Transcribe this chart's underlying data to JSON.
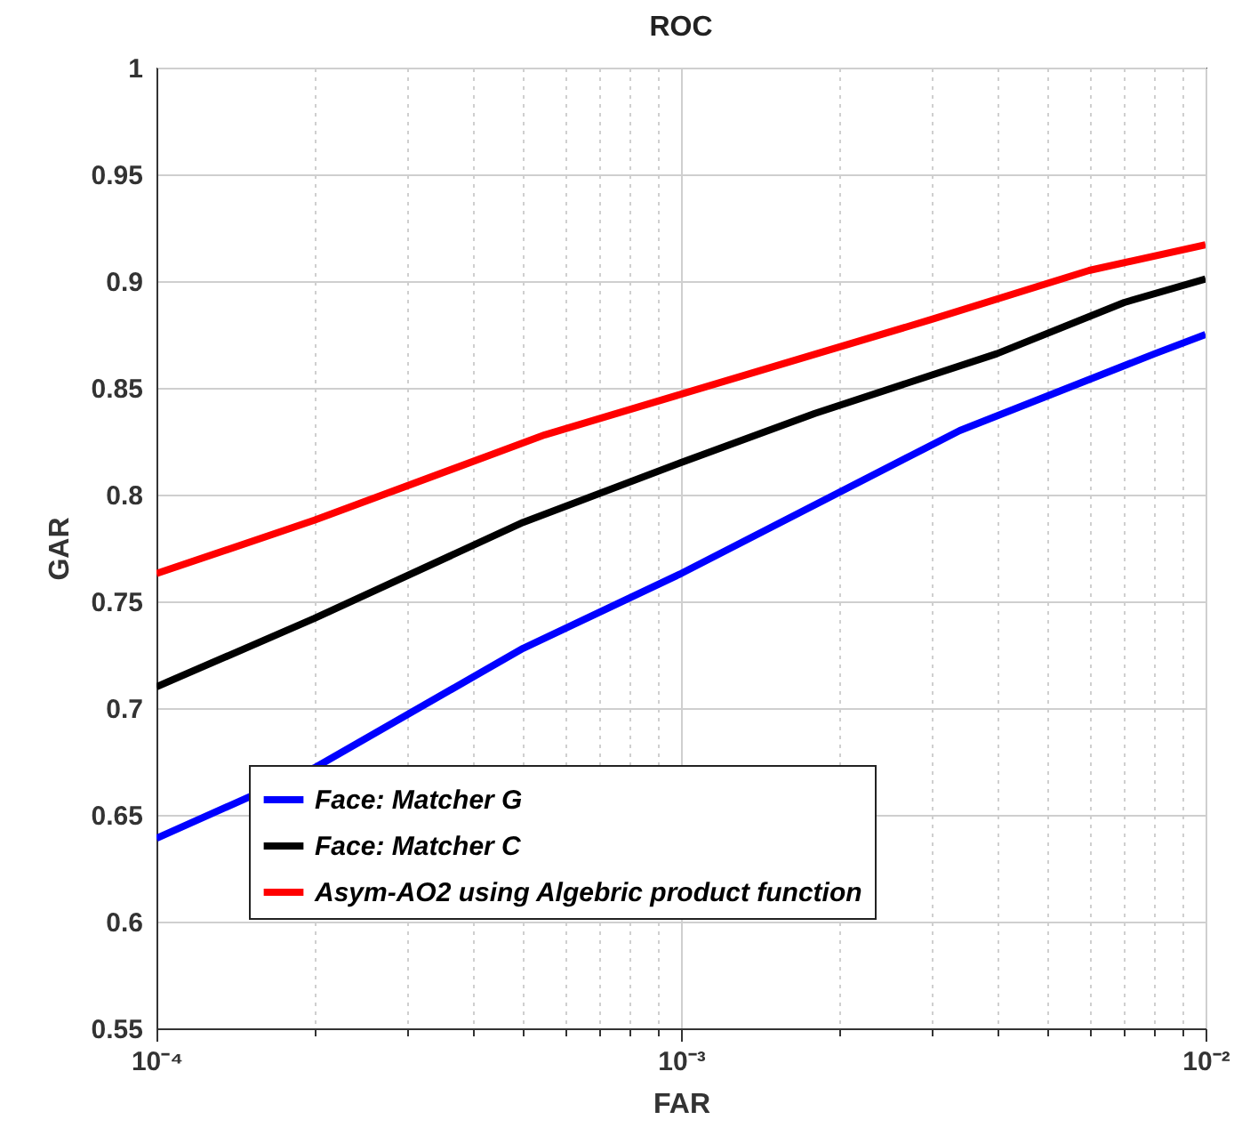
{
  "chart_data": {
    "type": "line",
    "title": "ROC",
    "xlabel": "FAR",
    "ylabel": "GAR",
    "log": "x",
    "grid": true,
    "legend": "bottom left",
    "line_style": "solid",
    "xlim": [
      0.0001,
      0.01
    ],
    "xticks": [
      {
        "value": 0.0001,
        "label": "10⁻⁴"
      },
      {
        "value": 0.0002,
        "label": null
      },
      {
        "value": 0.0003,
        "label": null
      },
      {
        "value": 0.0004,
        "label": null
      },
      {
        "value": 0.0005,
        "label": null
      },
      {
        "value": 0.0006,
        "label": null
      },
      {
        "value": 0.0007,
        "label": null
      },
      {
        "value": 0.0008,
        "label": null
      },
      {
        "value": 0.0009,
        "label": null
      },
      {
        "value": 0.001,
        "label": "10⁻³"
      },
      {
        "value": 0.002,
        "label": null
      },
      {
        "value": 0.003,
        "label": null
      },
      {
        "value": 0.004,
        "label": null
      },
      {
        "value": 0.005,
        "label": null
      },
      {
        "value": 0.006,
        "label": null
      },
      {
        "value": 0.007,
        "label": null
      },
      {
        "value": 0.008,
        "label": null
      },
      {
        "value": 0.009,
        "label": null
      },
      {
        "value": 0.01,
        "label": "10⁻²"
      }
    ],
    "ylim": [
      0.55,
      1
    ],
    "yticks": [
      0.55,
      0.6,
      0.65,
      0.7,
      0.75,
      0.8,
      0.85,
      0.9,
      0.95,
      1
    ],
    "series": [
      {
        "name": "Face: Matcher G",
        "color": "#0000ff",
        "x": [
          0.0001,
          0.0002,
          0.0005,
          0.001,
          0.0034,
          0.008,
          0.01
        ],
        "values": [
          0.639,
          0.672,
          0.728,
          0.763,
          0.83,
          0.866,
          0.875
        ]
      },
      {
        "name": "Face: Matcher C",
        "color": "#000000",
        "x": [
          0.0001,
          0.0002,
          0.0005,
          0.001,
          0.0018,
          0.004,
          0.007,
          0.01
        ],
        "values": [
          0.71,
          0.742,
          0.787,
          0.815,
          0.838,
          0.866,
          0.89,
          0.901
        ]
      },
      {
        "name": "Asym-AO2 using Algebric product function",
        "color": "#ff0000",
        "x": [
          0.0001,
          0.0002,
          0.00055,
          0.001,
          0.003,
          0.006,
          0.01
        ],
        "values": [
          0.763,
          0.788,
          0.828,
          0.847,
          0.882,
          0.905,
          0.917
        ]
      }
    ]
  }
}
